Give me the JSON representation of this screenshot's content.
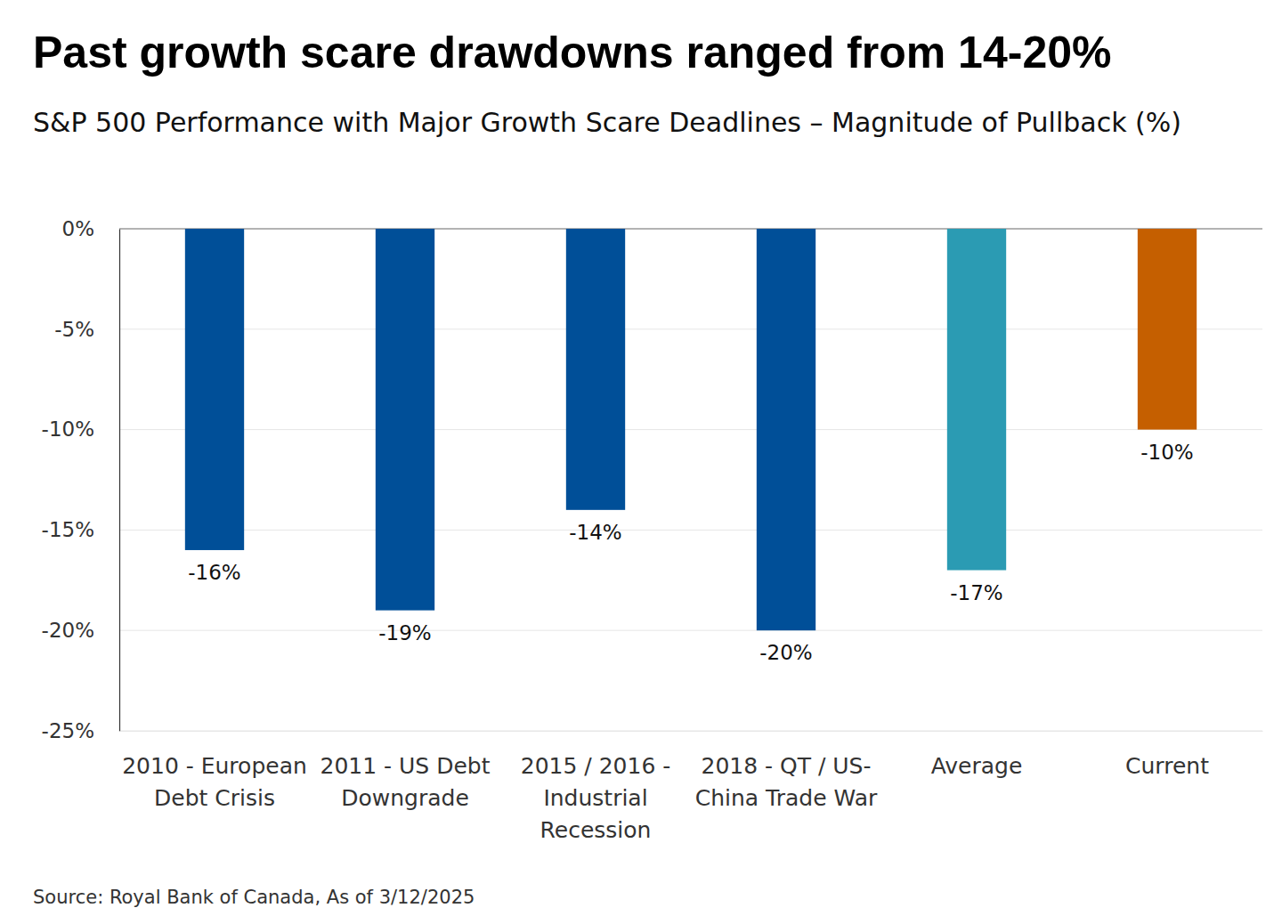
{
  "chart_data": {
    "type": "bar",
    "title": "Past growth scare drawdowns ranged from 14-20%",
    "subtitle": "S&P 500 Performance with Major Growth Scare Deadlines – Magnitude of Pullback (%)",
    "source": "Source: Royal Bank of Canada, As of 3/12/2025",
    "categories": [
      "2010 - European\nDebt Crisis",
      "2011 - US Debt\nDowngrade",
      "2015 / 2016 -\nIndustrial\nRecession",
      "2018 - QT / US-\nChina Trade War",
      "Average",
      "Current"
    ],
    "values": [
      -16,
      -19,
      -14,
      -20,
      -17,
      -10
    ],
    "value_labels": [
      "-16%",
      "-19%",
      "-14%",
      "-20%",
      "-17%",
      "-10%"
    ],
    "colors": [
      "#004f98",
      "#004f98",
      "#004f98",
      "#004f98",
      "#2b9bb3",
      "#c55f00"
    ],
    "ylim": [
      -25,
      0
    ],
    "yticks": [
      {
        "value": 0,
        "label": "0%"
      },
      {
        "value": -5,
        "label": "-5%"
      },
      {
        "value": -10,
        "label": "-10%"
      },
      {
        "value": -15,
        "label": "-15%"
      },
      {
        "value": -20,
        "label": "-20%"
      },
      {
        "value": -25,
        "label": "-25%"
      }
    ],
    "grid": true,
    "data_labels": true
  }
}
